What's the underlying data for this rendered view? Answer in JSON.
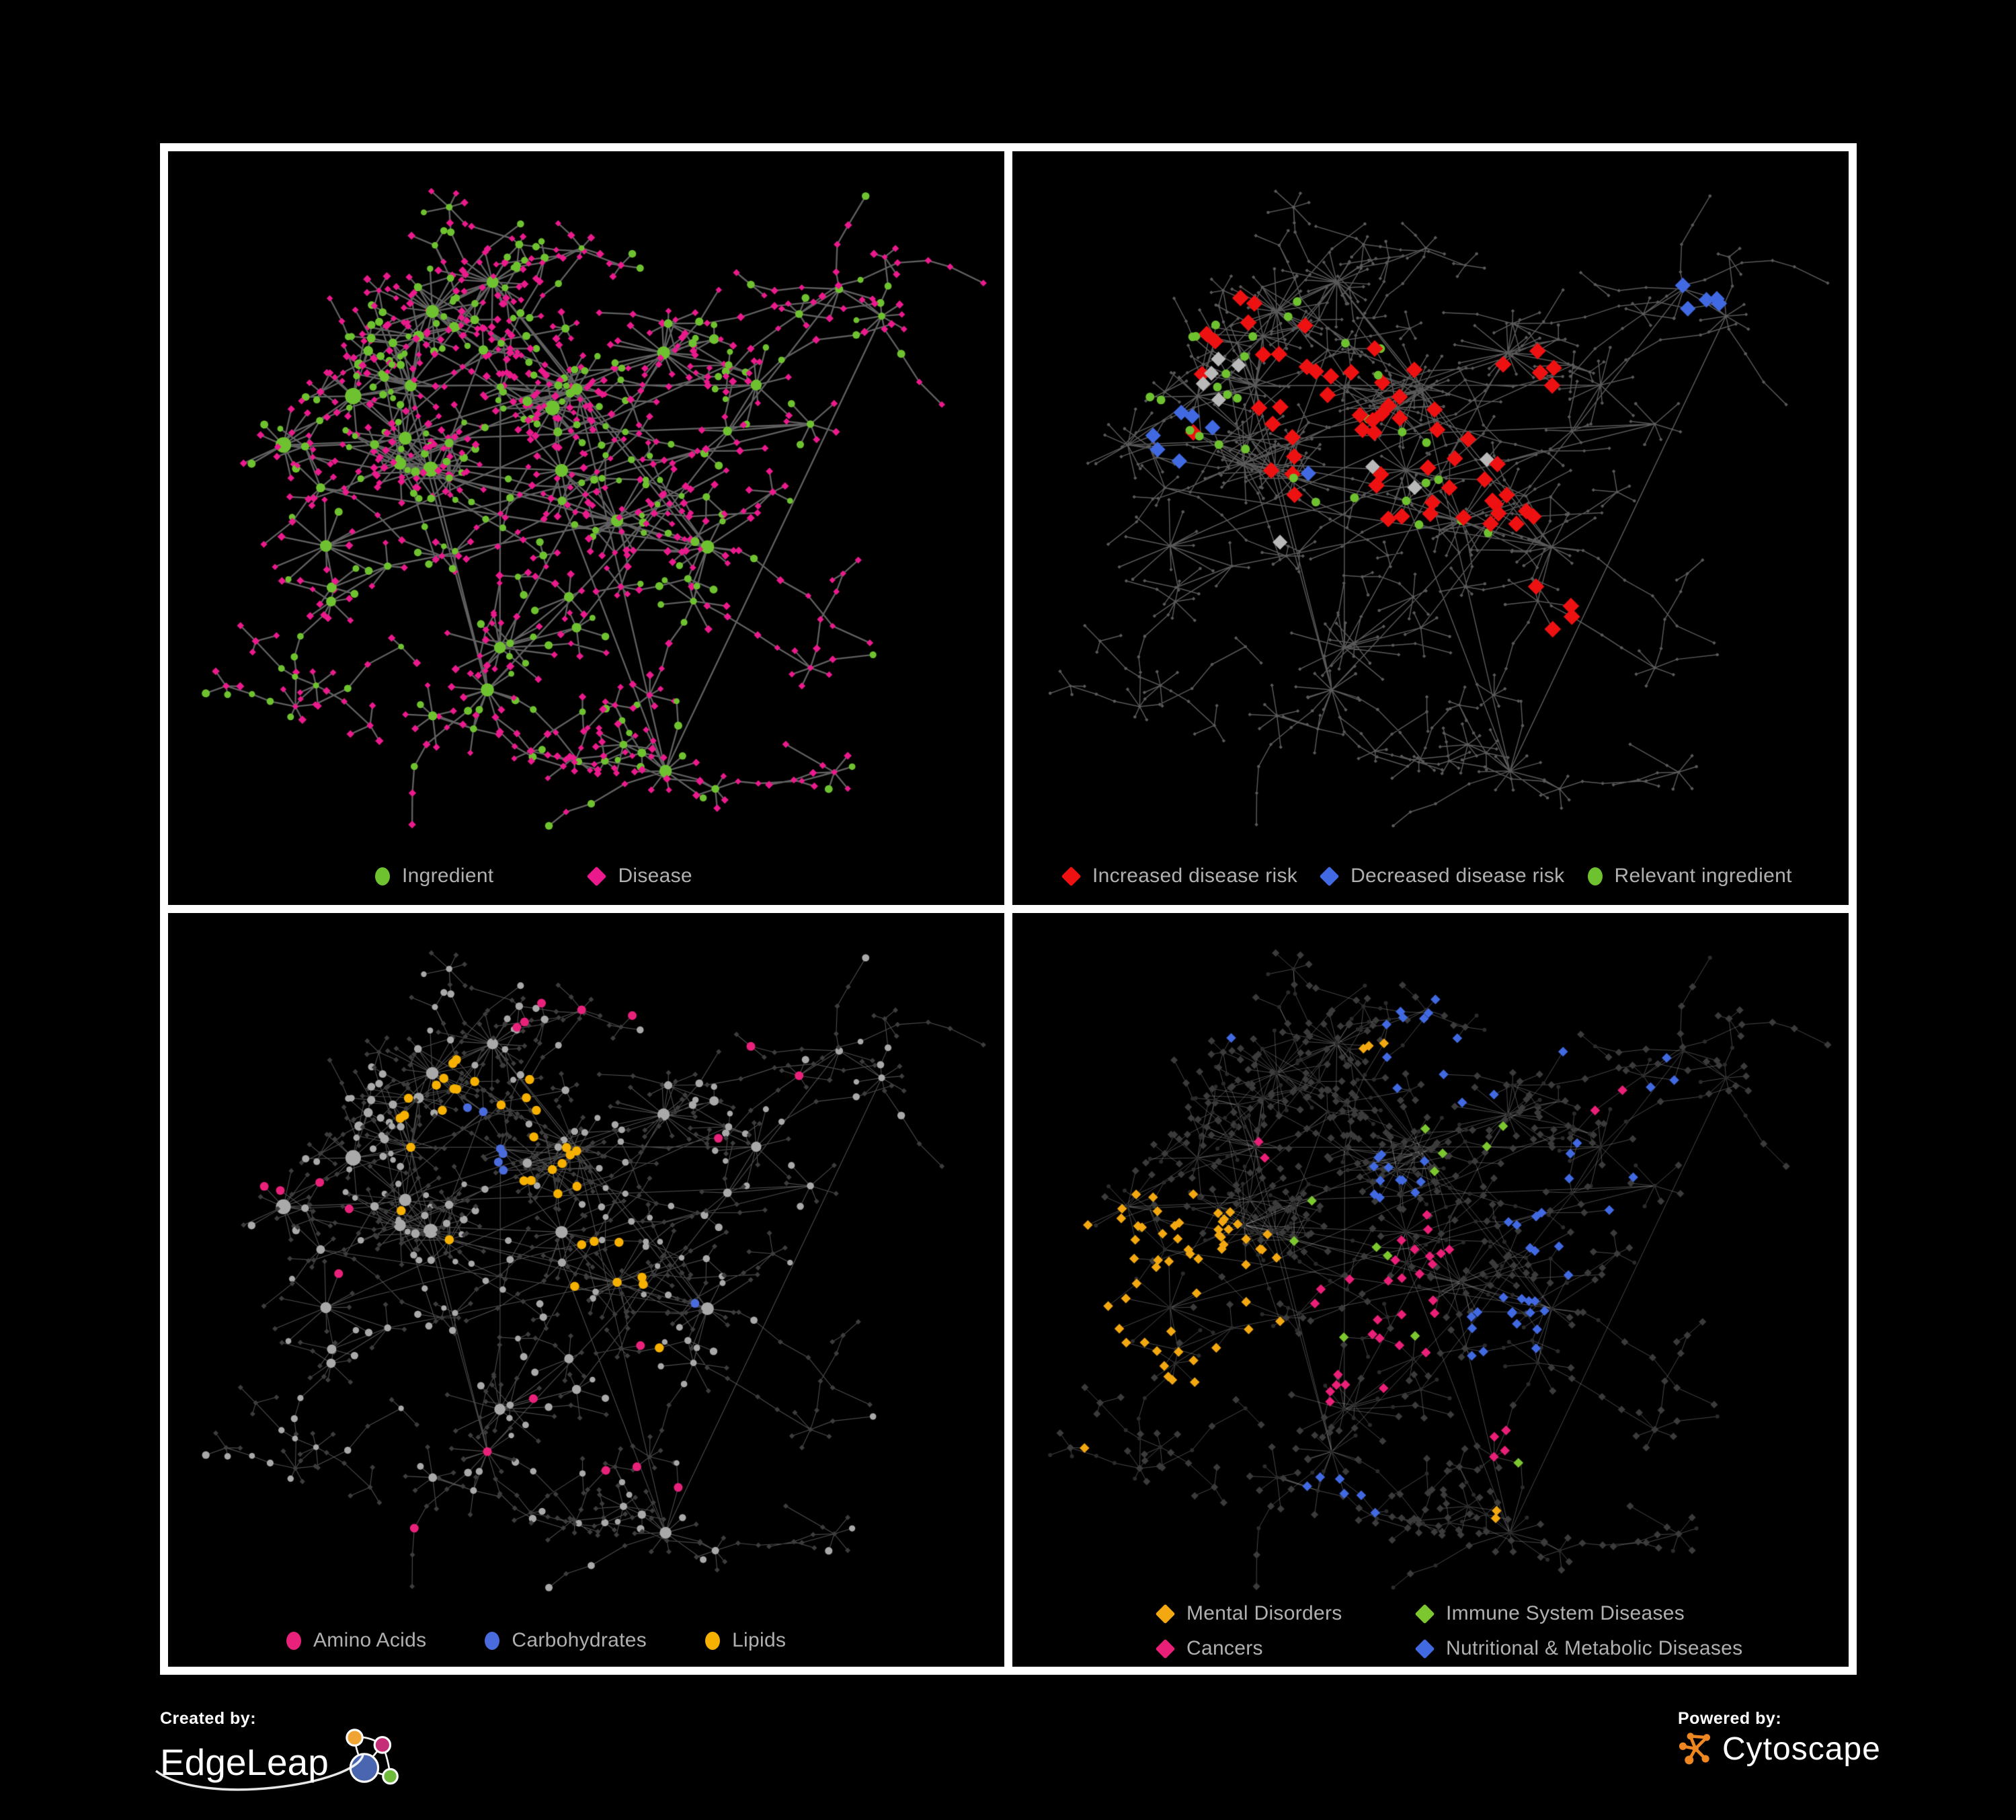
{
  "panels": [
    {
      "name": "ingredient-disease-network",
      "legend": [
        {
          "label": "Ingredient",
          "shape": "circle",
          "color": "#6fc22f"
        },
        {
          "label": "Disease",
          "shape": "diamond",
          "color": "#ea1a8c"
        }
      ]
    },
    {
      "name": "disease-risk-network",
      "legend": [
        {
          "label": "Increased disease risk",
          "shape": "diamond",
          "color": "#ee1111"
        },
        {
          "label": "Decreased disease risk",
          "shape": "diamond",
          "color": "#4169e1"
        },
        {
          "label": "Relevant ingredient",
          "shape": "circle",
          "color": "#6fc22f"
        }
      ]
    },
    {
      "name": "nutrient-class-network",
      "legend": [
        {
          "label": "Amino Acids",
          "shape": "circle",
          "color": "#e8227b"
        },
        {
          "label": "Carbohydrates",
          "shape": "circle",
          "color": "#4a6bdc"
        },
        {
          "label": "Lipids",
          "shape": "circle",
          "color": "#f6b000"
        }
      ]
    },
    {
      "name": "disease-category-network",
      "legend": [
        {
          "label": "Mental Disorders",
          "shape": "diamond",
          "color": "#f3a811"
        },
        {
          "label": "Immune System Diseases",
          "shape": "diamond",
          "color": "#7cc62f"
        },
        {
          "label": "Cancers",
          "shape": "diamond",
          "color": "#ea1f78"
        },
        {
          "label": "Nutritional & Metabolic Diseases",
          "shape": "diamond",
          "color": "#4169e1"
        }
      ]
    }
  ],
  "network": {
    "edge_color": {
      "p1": "#6a6a6a",
      "p2": "#6f6f6f",
      "p3": "#9b9b9b",
      "p4": "#a0a0a0"
    },
    "p1": {
      "ingredient": "#6fc22f",
      "disease": "#ea1a8c"
    },
    "p2": {
      "base": "#5a5a5a",
      "increased": "#ee1111",
      "decreased": "#4169e1",
      "relevant": "#6fc22f",
      "other": "#b9b9b9"
    },
    "p3": {
      "ingredient": "#a9a9a9",
      "disease": "#3d3d3d",
      "amino": "#e8227b",
      "carbohydrates": "#4a6bdc",
      "lipids": "#f6b000"
    },
    "p4": {
      "ingredient": "#2b2b2b",
      "disease": "#3b3b3b",
      "mental": "#f3a811",
      "immune": "#7cc62f",
      "cancers": "#ea1f78",
      "nutritional": "#4169e1"
    }
  },
  "footer": {
    "created_by": "Created by:",
    "creator_brand": "EdgeLeap",
    "powered_by": "Powered by:",
    "powered_brand": "Cytoscape"
  },
  "logo_colors": {
    "edgeleap": {
      "orange": "#f0a434",
      "pink": "#c52d78",
      "blue": "#4a66b0",
      "green": "#6fba3c"
    },
    "cytoscape": "#ee8722"
  }
}
